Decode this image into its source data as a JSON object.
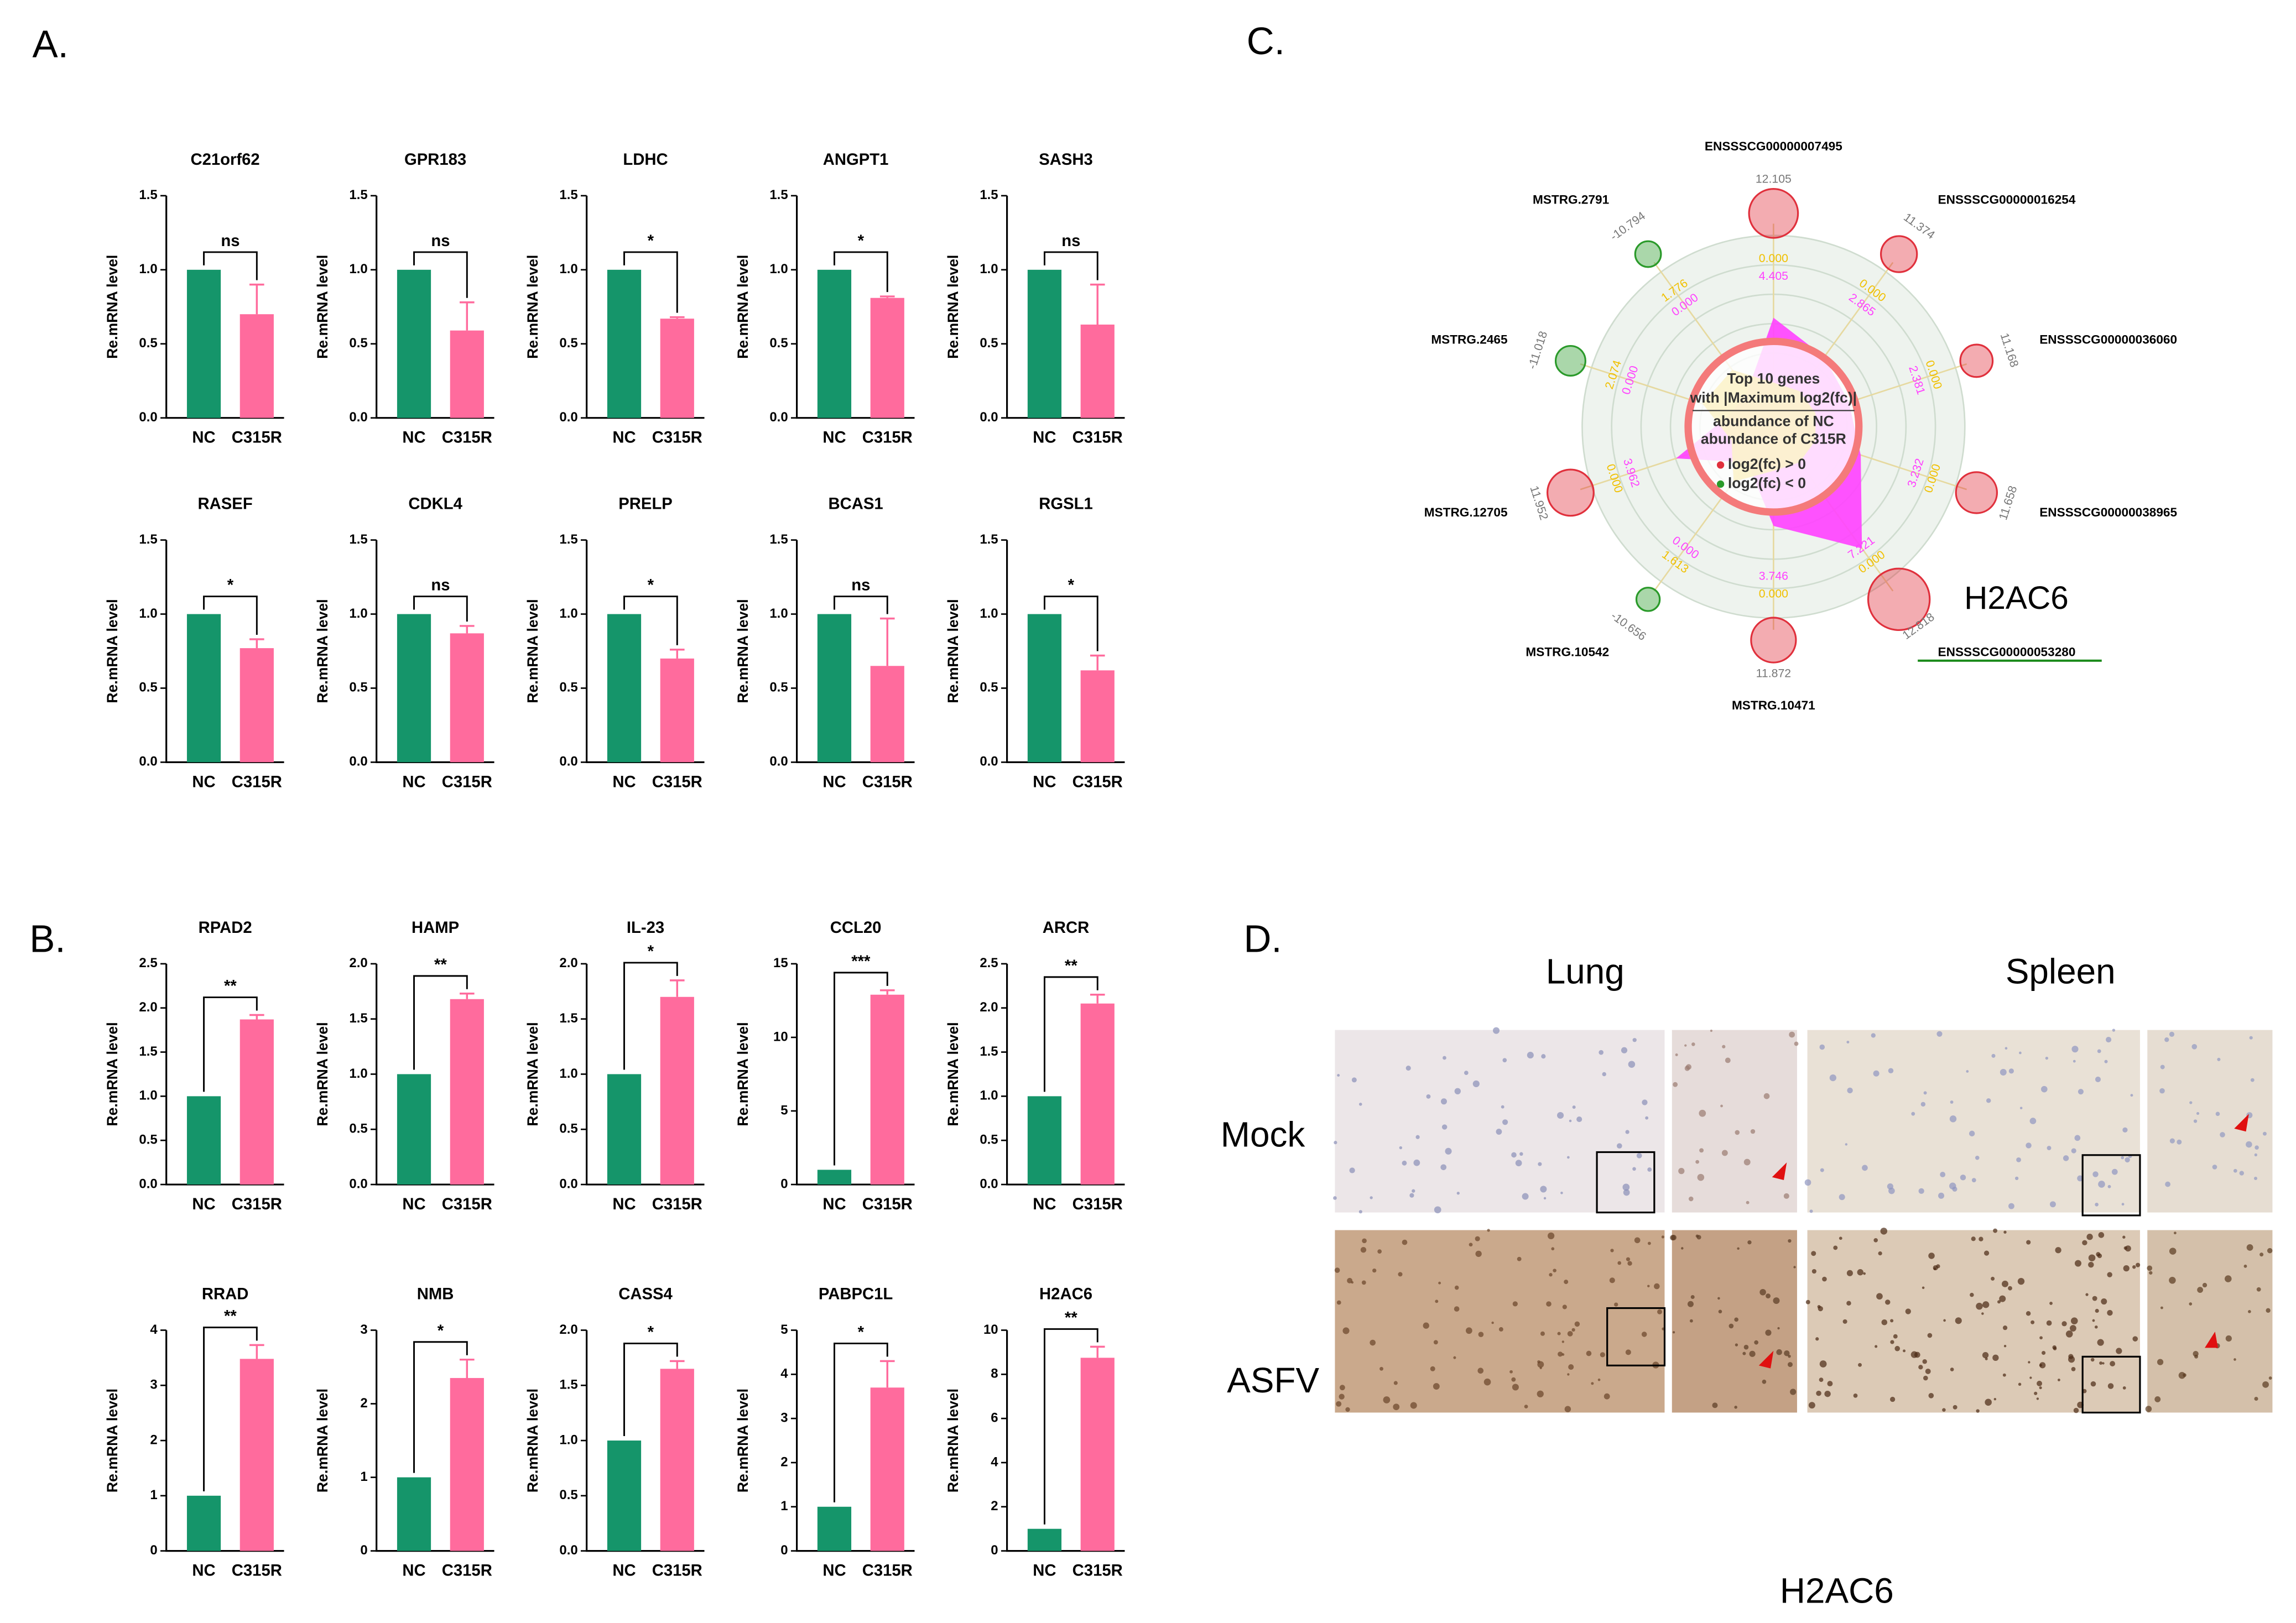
{
  "panel_labels": [
    "A.",
    "B.",
    "C.",
    "D."
  ],
  "chart_data": [
    {
      "type": "bar",
      "title": "C21orf62",
      "categories": [
        "NC",
        "C315R"
      ],
      "values": [
        1,
        0.7
      ],
      "errors": [
        null,
        0.2
      ],
      "colors": [
        "#15956a",
        "#ff6b9d"
      ],
      "ylabel": "Re.mRNA level",
      "ylim": [
        0,
        1.5
      ],
      "yticks": [
        {
          "value": 0,
          "label": "0.0"
        },
        0.5,
        {
          "value": 1,
          "label": "1.0"
        },
        1.5
      ],
      "annotation": "ns"
    },
    {
      "type": "bar",
      "title": "GPR183",
      "categories": [
        "NC",
        "C315R"
      ],
      "values": [
        1,
        0.59
      ],
      "errors": [
        null,
        0.19
      ],
      "colors": [
        "#15956a",
        "#ff6b9d"
      ],
      "ylabel": "Re.mRNA level",
      "ylim": [
        0,
        1.5
      ],
      "yticks": [
        {
          "value": 0,
          "label": "0.0"
        },
        0.5,
        {
          "value": 1,
          "label": "1.0"
        },
        1.5
      ],
      "annotation": "ns"
    },
    {
      "type": "bar",
      "title": "LDHC",
      "categories": [
        "NC",
        "C315R"
      ],
      "values": [
        1,
        0.67
      ],
      "errors": [
        null,
        0.01
      ],
      "colors": [
        "#15956a",
        "#ff6b9d"
      ],
      "ylabel": "Re.mRNA level",
      "ylim": [
        0,
        1.5
      ],
      "yticks": [
        {
          "value": 0,
          "label": "0.0"
        },
        0.5,
        {
          "value": 1,
          "label": "1.0"
        },
        1.5
      ],
      "annotation": "*"
    },
    {
      "type": "bar",
      "title": "ANGPT1",
      "categories": [
        "NC",
        "C315R"
      ],
      "values": [
        1,
        0.81
      ],
      "errors": [
        null,
        0.01
      ],
      "colors": [
        "#15956a",
        "#ff6b9d"
      ],
      "ylabel": "Re.mRNA level",
      "ylim": [
        0,
        1.5
      ],
      "yticks": [
        {
          "value": 0,
          "label": "0.0"
        },
        0.5,
        {
          "value": 1,
          "label": "1.0"
        },
        1.5
      ],
      "annotation": "*"
    },
    {
      "type": "bar",
      "title": "SASH3",
      "categories": [
        "NC",
        "C315R"
      ],
      "values": [
        1,
        0.63
      ],
      "errors": [
        null,
        0.27
      ],
      "colors": [
        "#15956a",
        "#ff6b9d"
      ],
      "ylabel": "Re.mRNA level",
      "ylim": [
        0,
        1.5
      ],
      "yticks": [
        {
          "value": 0,
          "label": "0.0"
        },
        0.5,
        {
          "value": 1,
          "label": "1.0"
        },
        1.5
      ],
      "annotation": "ns"
    },
    {
      "type": "bar",
      "title": "RASEF",
      "categories": [
        "NC",
        "C315R"
      ],
      "values": [
        1,
        0.77
      ],
      "errors": [
        null,
        0.06
      ],
      "colors": [
        "#15956a",
        "#ff6b9d"
      ],
      "ylabel": "Re.mRNA level",
      "ylim": [
        0,
        1.5
      ],
      "yticks": [
        {
          "value": 0,
          "label": "0.0"
        },
        0.5,
        {
          "value": 1,
          "label": "1.0"
        },
        1.5
      ],
      "annotation": "*"
    },
    {
      "type": "bar",
      "title": "CDKL4",
      "categories": [
        "NC",
        "C315R"
      ],
      "values": [
        1,
        0.87
      ],
      "errors": [
        null,
        0.05
      ],
      "colors": [
        "#15956a",
        "#ff6b9d"
      ],
      "ylabel": "Re.mRNA level",
      "ylim": [
        0,
        1.5
      ],
      "yticks": [
        {
          "value": 0,
          "label": "0.0"
        },
        0.5,
        {
          "value": 1,
          "label": "1.0"
        },
        1.5
      ],
      "annotation": "ns"
    },
    {
      "type": "bar",
      "title": "PRELP",
      "categories": [
        "NC",
        "C315R"
      ],
      "values": [
        1,
        0.7
      ],
      "errors": [
        null,
        0.06
      ],
      "colors": [
        "#15956a",
        "#ff6b9d"
      ],
      "ylabel": "Re.mRNA level",
      "ylim": [
        0,
        1.5
      ],
      "yticks": [
        {
          "value": 0,
          "label": "0.0"
        },
        0.5,
        {
          "value": 1,
          "label": "1.0"
        },
        1.5
      ],
      "annotation": "*"
    },
    {
      "type": "bar",
      "title": "BCAS1",
      "categories": [
        "NC",
        "C315R"
      ],
      "values": [
        1,
        0.65
      ],
      "errors": [
        null,
        0.32
      ],
      "colors": [
        "#15956a",
        "#ff6b9d"
      ],
      "ylabel": "Re.mRNA level",
      "ylim": [
        0,
        1.5
      ],
      "yticks": [
        {
          "value": 0,
          "label": "0.0"
        },
        0.5,
        {
          "value": 1,
          "label": "1.0"
        },
        1.5
      ],
      "annotation": "ns"
    },
    {
      "type": "bar",
      "title": "RGSL1",
      "categories": [
        "NC",
        "C315R"
      ],
      "values": [
        1,
        0.62
      ],
      "errors": [
        null,
        0.1
      ],
      "colors": [
        "#15956a",
        "#ff6b9d"
      ],
      "ylabel": "Re.mRNA level",
      "ylim": [
        0,
        1.5
      ],
      "yticks": [
        {
          "value": 0,
          "label": "0.0"
        },
        0.5,
        {
          "value": 1,
          "label": "1.0"
        },
        1.5
      ],
      "annotation": "*"
    },
    {
      "type": "bar",
      "title": "RPAD2",
      "categories": [
        "NC",
        "C315R"
      ],
      "values": [
        1,
        1.87
      ],
      "errors": [
        null,
        0.05
      ],
      "colors": [
        "#15956a",
        "#ff6b9d"
      ],
      "ylabel": "Re.mRNA level",
      "ylim": [
        0,
        2.5
      ],
      "yticks": [
        {
          "value": 0,
          "label": "0.0"
        },
        0.5,
        {
          "value": 1,
          "label": "1.0"
        },
        1.5,
        {
          "value": 2,
          "label": "2.0"
        },
        2.5
      ],
      "annotation": "**"
    },
    {
      "type": "bar",
      "title": "HAMP",
      "categories": [
        "NC",
        "C315R"
      ],
      "values": [
        1,
        1.68
      ],
      "errors": [
        null,
        0.05
      ],
      "colors": [
        "#15956a",
        "#ff6b9d"
      ],
      "ylabel": "Re.mRNA level",
      "ylim": [
        0,
        2
      ],
      "yticks": [
        {
          "value": 0,
          "label": "0.0"
        },
        0.5,
        {
          "value": 1,
          "label": "1.0"
        },
        1.5,
        {
          "value": 2,
          "label": "2.0"
        }
      ],
      "annotation": "**"
    },
    {
      "type": "bar",
      "title": "IL-23",
      "categories": [
        "NC",
        "C315R"
      ],
      "values": [
        1,
        1.7
      ],
      "errors": [
        null,
        0.15
      ],
      "colors": [
        "#15956a",
        "#ff6b9d"
      ],
      "ylabel": "Re.mRNA level",
      "ylim": [
        0,
        2
      ],
      "yticks": [
        {
          "value": 0,
          "label": "0.0"
        },
        0.5,
        {
          "value": 1,
          "label": "1.0"
        },
        1.5,
        {
          "value": 2,
          "label": "2.0"
        }
      ],
      "annotation": "*"
    },
    {
      "type": "bar",
      "title": "CCL20",
      "categories": [
        "NC",
        "C315R"
      ],
      "values": [
        1,
        12.9
      ],
      "errors": [
        null,
        0.3
      ],
      "colors": [
        "#15956a",
        "#ff6b9d"
      ],
      "ylabel": "Re.mRNA level",
      "ylim": [
        0,
        15
      ],
      "yticks": [
        0,
        5,
        10,
        15
      ],
      "annotation": "***"
    },
    {
      "type": "bar",
      "title": "ARCR",
      "categories": [
        "NC",
        "C315R"
      ],
      "values": [
        1,
        2.05
      ],
      "errors": [
        null,
        0.1
      ],
      "colors": [
        "#15956a",
        "#ff6b9d"
      ],
      "ylabel": "Re.mRNA level",
      "ylim": [
        0,
        2.5
      ],
      "yticks": [
        {
          "value": 0,
          "label": "0.0"
        },
        0.5,
        {
          "value": 1,
          "label": "1.0"
        },
        1.5,
        {
          "value": 2,
          "label": "2.0"
        },
        2.5
      ],
      "annotation": "**"
    },
    {
      "type": "bar",
      "title": "RRAD",
      "categories": [
        "NC",
        "C315R"
      ],
      "values": [
        1,
        3.48
      ],
      "errors": [
        null,
        0.25
      ],
      "colors": [
        "#15956a",
        "#ff6b9d"
      ],
      "ylabel": "Re.mRNA level",
      "ylim": [
        0,
        4
      ],
      "yticks": [
        0,
        1,
        2,
        3,
        4
      ],
      "annotation": "**"
    },
    {
      "type": "bar",
      "title": "NMB",
      "categories": [
        "NC",
        "C315R"
      ],
      "values": [
        1,
        2.35
      ],
      "errors": [
        null,
        0.25
      ],
      "colors": [
        "#15956a",
        "#ff6b9d"
      ],
      "ylabel": "Re.mRNA level",
      "ylim": [
        0,
        3
      ],
      "yticks": [
        0,
        1,
        2,
        3
      ],
      "annotation": "*"
    },
    {
      "type": "bar",
      "title": "CASS4",
      "categories": [
        "NC",
        "C315R"
      ],
      "values": [
        1,
        1.65
      ],
      "errors": [
        null,
        0.07
      ],
      "colors": [
        "#15956a",
        "#ff6b9d"
      ],
      "ylabel": "Re.mRNA level",
      "ylim": [
        0,
        2
      ],
      "yticks": [
        {
          "value": 0,
          "label": "0.0"
        },
        0.5,
        {
          "value": 1,
          "label": "1.0"
        },
        1.5,
        {
          "value": 2,
          "label": "2.0"
        }
      ],
      "annotation": "*"
    },
    {
      "type": "bar",
      "title": "PABPC1L",
      "categories": [
        "NC",
        "C315R"
      ],
      "values": [
        1,
        3.7
      ],
      "errors": [
        null,
        0.6
      ],
      "colors": [
        "#15956a",
        "#ff6b9d"
      ],
      "ylabel": "Re.mRNA level",
      "ylim": [
        0,
        5
      ],
      "yticks": [
        0,
        1,
        2,
        3,
        4,
        5
      ],
      "annotation": "*"
    },
    {
      "type": "bar",
      "title": "H2AC6",
      "categories": [
        "NC",
        "C315R"
      ],
      "values": [
        1,
        8.75
      ],
      "errors": [
        null,
        0.5
      ],
      "colors": [
        "#15956a",
        "#ff6b9d"
      ],
      "ylabel": "Re.mRNA level",
      "ylim": [
        0,
        10
      ],
      "yticks": [
        0,
        2,
        4,
        6,
        8,
        10
      ],
      "annotation": "**"
    },
    {
      "type": "radar",
      "title": [
        "Top 10 genes",
        "with |Maximum log2(fc)|"
      ],
      "categories": [
        "ENSSSCG00000007495",
        "ENSSSCG00000016254",
        "ENSSSCG00000036060",
        "ENSSSCG00000038965",
        "ENSSSCG00000053280",
        "MSTRG.10471",
        "MSTRG.10542",
        "MSTRG.12705",
        "MSTRG.2465",
        "MSTRG.2791"
      ],
      "series": [
        {
          "color": "#777777",
          "values": [
            12.105,
            11.374,
            11.168,
            11.658,
            12.818,
            11.872,
            -10.656,
            11.952,
            -11.018,
            -10.794
          ]
        },
        {
          "name": "abundance of NC",
          "color": "#f0c000",
          "values": [
            0,
            0,
            0,
            0,
            0,
            0,
            1.613,
            0,
            2.074,
            1.776
          ],
          "value_labels": [
            "0.000",
            "0.000",
            "0.000",
            "0.000",
            "0.000",
            "0.000",
            "1.613",
            "0.000",
            "2.074",
            "1.776"
          ]
        },
        {
          "name": "abundance of C315R",
          "color": "#ff40ff",
          "values": [
            4.405,
            2.865,
            2.381,
            3.232,
            7.221,
            3.746,
            0,
            3.962,
            0,
            0
          ],
          "value_labels": [
            "4.405",
            "2.865",
            "2.381",
            "3.232",
            "7.221",
            "3.746",
            "0.000",
            "3.962",
            "0.000",
            "0.000"
          ]
        }
      ],
      "legend": [
        {
          "label": "log2(fc) > 0",
          "color": "#e0303c"
        },
        {
          "label": "log2(fc) < 0",
          "color": "#2a9a2a"
        }
      ],
      "annotation": "H2AC6"
    }
  ],
  "panel_d": {
    "columns": [
      "Lung",
      "Spleen"
    ],
    "rows": [
      "Mock",
      "ASFV"
    ],
    "caption": "H2AC6"
  }
}
